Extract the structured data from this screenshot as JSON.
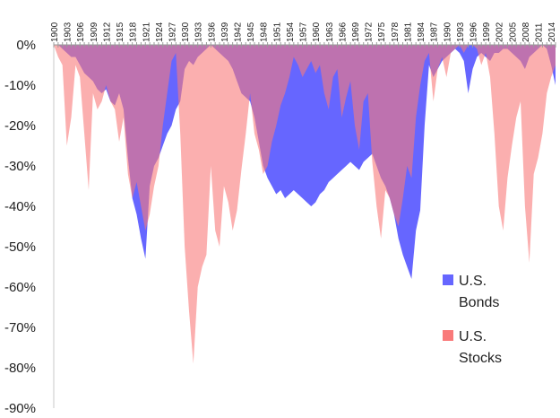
{
  "chart_data": {
    "type": "area",
    "title": "",
    "xlabel": "",
    "ylabel": "",
    "xlim": [
      1900,
      2015
    ],
    "ylim": [
      -90,
      0
    ],
    "y_ticks": [
      0,
      -10,
      -20,
      -30,
      -40,
      -50,
      -60,
      -70,
      -80,
      -90
    ],
    "y_tick_labels": [
      "0%",
      "-10%",
      "-20%",
      "-30%",
      "-40%",
      "-50%",
      "-60%",
      "-70%",
      "-80%",
      "-90%"
    ],
    "x_ticks": [
      1900,
      1903,
      1906,
      1909,
      1912,
      1915,
      1918,
      1921,
      1924,
      1927,
      1930,
      1933,
      1936,
      1939,
      1942,
      1945,
      1948,
      1951,
      1954,
      1957,
      1960,
      1963,
      1966,
      1969,
      1972,
      1975,
      1978,
      1981,
      1984,
      1987,
      1990,
      1993,
      1996,
      1999,
      2002,
      2005,
      2008,
      2011,
      2014
    ],
    "x_tick_labels": [
      "1900",
      "1903",
      "1906",
      "1909",
      "1912",
      "1915",
      "1918",
      "1921",
      "1924",
      "1927",
      "1930",
      "1933",
      "1936",
      "1939",
      "1942",
      "1945",
      "1948",
      "1951",
      "1954",
      "1957",
      "1960",
      "1963",
      "1966",
      "1969",
      "1972",
      "1975",
      "1978",
      "1981",
      "1984",
      "1987",
      "1990",
      "1993",
      "1996",
      "1999",
      "2002",
      "2005",
      "2008",
      "2011",
      "2014"
    ],
    "grid": false,
    "legend_position": "bottom-right",
    "series": [
      {
        "name": "U.S. Bonds",
        "color": "#6666ff",
        "x": [
          1900,
          1901,
          1902,
          1903,
          1904,
          1905,
          1906,
          1907,
          1908,
          1909,
          1910,
          1911,
          1912,
          1913,
          1914,
          1915,
          1916,
          1917,
          1918,
          1919,
          1920,
          1921,
          1922,
          1923,
          1924,
          1925,
          1926,
          1927,
          1928,
          1929,
          1930,
          1931,
          1932,
          1933,
          1934,
          1935,
          1936,
          1937,
          1938,
          1939,
          1940,
          1941,
          1942,
          1943,
          1944,
          1945,
          1946,
          1947,
          1948,
          1949,
          1950,
          1951,
          1952,
          1953,
          1954,
          1955,
          1956,
          1957,
          1958,
          1959,
          1960,
          1961,
          1962,
          1963,
          1964,
          1965,
          1966,
          1967,
          1968,
          1969,
          1970,
          1971,
          1972,
          1973,
          1974,
          1975,
          1976,
          1977,
          1978,
          1979,
          1980,
          1981,
          1982,
          1983,
          1984,
          1985,
          1986,
          1987,
          1988,
          1989,
          1990,
          1991,
          1992,
          1993,
          1994,
          1995,
          1996,
          1997,
          1998,
          1999,
          2000,
          2001,
          2002,
          2003,
          2004,
          2005,
          2006,
          2007,
          2008,
          2009,
          2010,
          2011,
          2012,
          2013,
          2014,
          2015
        ],
        "values": [
          0,
          0,
          -1,
          -2,
          -3,
          -3,
          -5,
          -7,
          -8,
          -9,
          -11,
          -12,
          -11,
          -14,
          -15,
          -12,
          -16,
          -28,
          -38,
          -42,
          -48,
          -53,
          -35,
          -30,
          -28,
          -25,
          -22,
          -20,
          -16,
          -14,
          -6,
          -4,
          -5,
          -3,
          -2,
          -1,
          0,
          -1,
          -2,
          -3,
          -4,
          -6,
          -9,
          -12,
          -13,
          -14,
          -18,
          -24,
          -30,
          -33,
          -35,
          -37,
          -36,
          -38,
          -37,
          -36,
          -37,
          -38,
          -39,
          -40,
          -39,
          -37,
          -36,
          -34,
          -33,
          -32,
          -31,
          -30,
          -29,
          -30,
          -31,
          -29,
          -28,
          -27,
          -30,
          -33,
          -35,
          -38,
          -42,
          -48,
          -52,
          -55,
          -58,
          -46,
          -41,
          -20,
          -5,
          -8,
          -6,
          -4,
          -3,
          -2,
          -1,
          -2,
          -4,
          -12,
          -6,
          -3,
          -2,
          -3,
          -4,
          -2,
          -2,
          -1,
          -1,
          -2,
          -3,
          -4,
          -6,
          -3,
          -2,
          -1,
          0,
          -1,
          -5,
          -10
        ]
      },
      {
        "name": "U.S. Stocks",
        "color": "#f97a7a",
        "x": [
          1900,
          1901,
          1902,
          1903,
          1904,
          1905,
          1906,
          1907,
          1908,
          1909,
          1910,
          1911,
          1912,
          1913,
          1914,
          1915,
          1916,
          1917,
          1918,
          1919,
          1920,
          1921,
          1922,
          1923,
          1924,
          1925,
          1926,
          1927,
          1928,
          1929,
          1930,
          1931,
          1932,
          1933,
          1934,
          1935,
          1936,
          1937,
          1938,
          1939,
          1940,
          1941,
          1942,
          1943,
          1944,
          1945,
          1946,
          1947,
          1948,
          1949,
          1950,
          1951,
          1952,
          1953,
          1954,
          1955,
          1956,
          1957,
          1958,
          1959,
          1960,
          1961,
          1962,
          1963,
          1964,
          1965,
          1966,
          1967,
          1968,
          1969,
          1970,
          1971,
          1972,
          1973,
          1974,
          1975,
          1976,
          1977,
          1978,
          1979,
          1980,
          1981,
          1982,
          1983,
          1984,
          1985,
          1986,
          1987,
          1988,
          1989,
          1990,
          1991,
          1992,
          1993,
          1994,
          1995,
          1996,
          1997,
          1998,
          1999,
          2000,
          2001,
          2002,
          2003,
          2004,
          2005,
          2006,
          2007,
          2008,
          2009,
          2010,
          2011,
          2012,
          2013,
          2014,
          2015
        ],
        "values": [
          0,
          -3,
          -5,
          -25,
          -18,
          -5,
          -8,
          -22,
          -36,
          -12,
          -16,
          -14,
          -10,
          -14,
          -16,
          -24,
          -18,
          -32,
          -38,
          -34,
          -40,
          -46,
          -42,
          -35,
          -30,
          -20,
          -12,
          -4,
          -2,
          -22,
          -50,
          -66,
          -79,
          -60,
          -55,
          -52,
          -30,
          -46,
          -50,
          -35,
          -39,
          -46,
          -41,
          -31,
          -22,
          -12,
          -22,
          -26,
          -32,
          -30,
          -24,
          -20,
          -15,
          -12,
          -8,
          -3,
          -5,
          -8,
          -6,
          -4,
          -7,
          -5,
          -12,
          -16,
          -8,
          -6,
          -18,
          -13,
          -9,
          -20,
          -26,
          -14,
          -12,
          -29,
          -40,
          -48,
          -36,
          -38,
          -42,
          -45,
          -38,
          -30,
          -33,
          -18,
          -10,
          -4,
          -2,
          -14,
          -6,
          -3,
          -8,
          -2,
          -1,
          0,
          -2,
          0,
          0,
          -1,
          -5,
          -2,
          -8,
          -22,
          -40,
          -46,
          -33,
          -25,
          -18,
          -14,
          -40,
          -54,
          -32,
          -28,
          -22,
          -12,
          -8,
          -5
        ]
      }
    ]
  }
}
